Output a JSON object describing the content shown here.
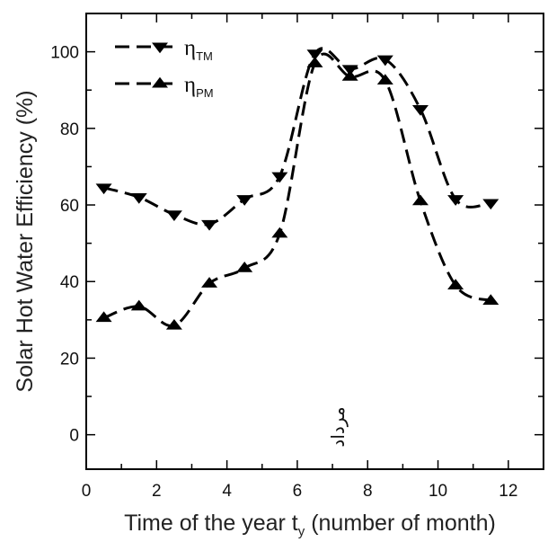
{
  "chart_data": {
    "type": "line",
    "xlabel": "Time of the year t",
    "xlabel_subscript": "y",
    "xlabel_suffix": " (number of month)",
    "ylabel": "Solar Hot Water Efficiency (%)",
    "xlim": [
      0,
      13
    ],
    "ylim": [
      -9,
      110
    ],
    "xticks": [
      0,
      2,
      4,
      6,
      8,
      10,
      12
    ],
    "yticks": [
      0,
      20,
      40,
      60,
      80,
      100
    ],
    "grid": false,
    "legend_position": "top-left",
    "annotation": "مرداد",
    "series": [
      {
        "name": "η",
        "name_subscript": "TM",
        "marker": "triangle-down",
        "line_style": "dashed",
        "color": "#000000",
        "x": [
          0.5,
          1.5,
          2.5,
          3.5,
          4.5,
          5.5,
          6.5,
          7.5,
          8.5,
          9.5,
          10.5,
          11.5
        ],
        "values": [
          64.5,
          62,
          57.5,
          55,
          61.5,
          67.5,
          99.5,
          95.5,
          98,
          85,
          61.5,
          60.5
        ]
      },
      {
        "name": "η",
        "name_subscript": "PM",
        "marker": "triangle-up",
        "line_style": "dashed",
        "color": "#000000",
        "x": [
          0.5,
          1.5,
          2.5,
          3.5,
          4.5,
          5.5,
          6.5,
          7.5,
          8.5,
          9.5,
          10.5,
          11.5
        ],
        "values": [
          30.5,
          33.5,
          28.5,
          39.5,
          43.5,
          52.5,
          97,
          93.5,
          92.5,
          61,
          39,
          35
        ]
      }
    ]
  }
}
